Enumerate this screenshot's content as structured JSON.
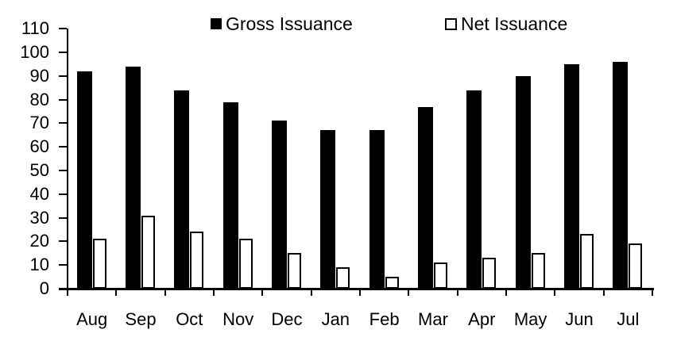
{
  "chart_data": {
    "type": "bar",
    "title": "",
    "xlabel": "",
    "ylabel": "",
    "categories": [
      "Aug",
      "Sep",
      "Oct",
      "Nov",
      "Dec",
      "Jan",
      "Feb",
      "Mar",
      "Apr",
      "May",
      "Jun",
      "Jul"
    ],
    "series": [
      {
        "name": "Gross Issuance",
        "style": "filled",
        "fill": "#000000",
        "stroke": "#000000",
        "values": [
          92,
          94,
          84,
          79,
          71,
          67,
          67,
          77,
          84,
          90,
          95,
          96
        ]
      },
      {
        "name": "Net Issuance",
        "style": "outlined",
        "fill": "#ffffff",
        "stroke": "#000000",
        "values": [
          21,
          31,
          24,
          21,
          15,
          9,
          5,
          11,
          13,
          15,
          23,
          19
        ]
      }
    ],
    "ylim": [
      0,
      110
    ],
    "ytick_interval": 10,
    "yticks": [
      0,
      10,
      20,
      30,
      40,
      50,
      60,
      70,
      80,
      90,
      100,
      110
    ],
    "grid": false,
    "legend_position": "top"
  },
  "legend": {
    "items": [
      {
        "label": "Gross Issuance",
        "swatch": "filled-black-square"
      },
      {
        "label": "Net Issuance",
        "swatch": "outlined-white-square"
      }
    ]
  },
  "colors": {
    "bar_fill": "#000000",
    "bar_outline": "#000000",
    "net_fill": "#ffffff",
    "axis": "#000000",
    "background": "#ffffff"
  }
}
